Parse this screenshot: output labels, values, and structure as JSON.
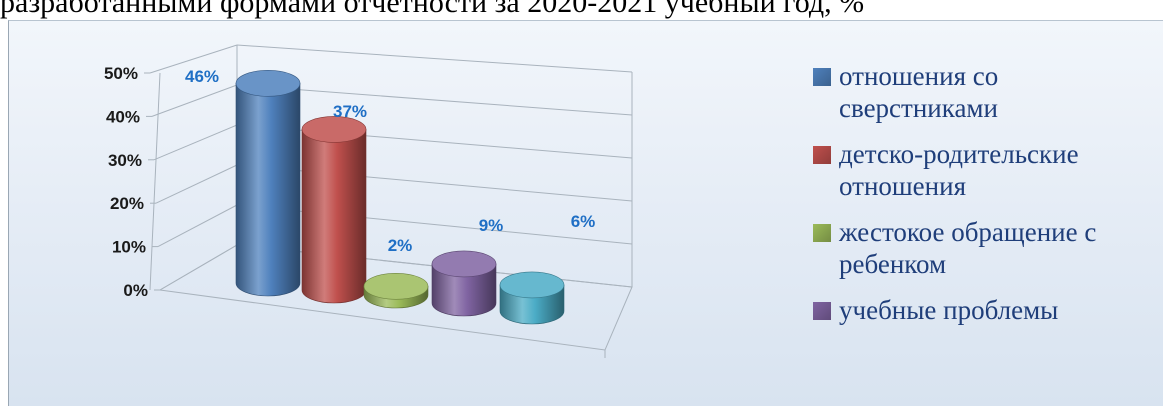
{
  "header": {
    "title_fragment": "разработанными формами отчетности за 2020-2021 учебный год, %"
  },
  "chart_data": {
    "type": "bar",
    "style": "3d-cylinder",
    "categories": [
      "отношения со сверстниками",
      "детско-родительские отношения",
      "жестокое обращение с ребенком",
      "учебные проблемы",
      ""
    ],
    "values": [
      46,
      37,
      2,
      9,
      6
    ],
    "data_labels": [
      "46%",
      "37%",
      "2%",
      "9%",
      "6%"
    ],
    "ylim": [
      0,
      50
    ],
    "y_ticks": [
      "0%",
      "10%",
      "20%",
      "30%",
      "40%",
      "50%"
    ],
    "grid": true,
    "legend_position": "right",
    "colors": [
      "#4f81bd",
      "#c0504d",
      "#9bbb59",
      "#8064a2",
      "#4bacc6"
    ],
    "label_color": "#1f6fc5"
  },
  "legend": [
    {
      "label": "отношения со сверстниками",
      "color": "#4f81bd"
    },
    {
      "label": "детско-родительские отношения",
      "color": "#c0504d"
    },
    {
      "label": "жестокое обращение с ребенком",
      "color": "#9bbb59"
    },
    {
      "label": "учебные проблемы",
      "color": "#8064a2"
    }
  ]
}
